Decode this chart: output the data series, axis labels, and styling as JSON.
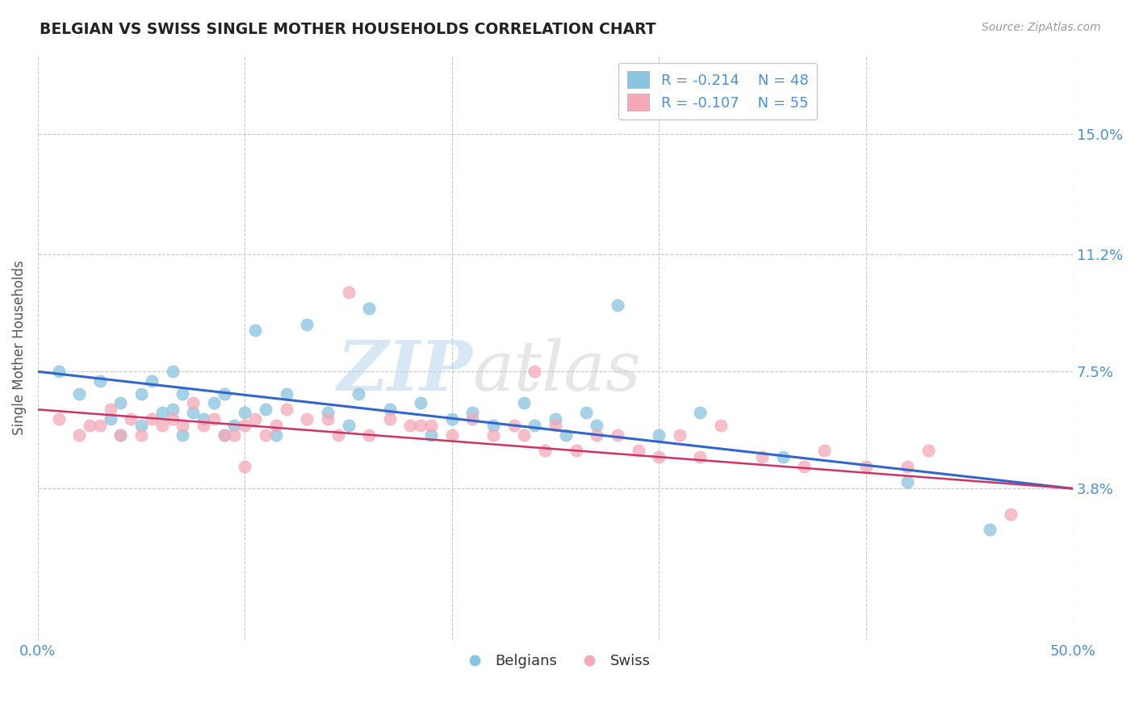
{
  "title": "BELGIAN VS SWISS SINGLE MOTHER HOUSEHOLDS CORRELATION CHART",
  "source": "Source: ZipAtlas.com",
  "ylabel": "Single Mother Households",
  "xlim": [
    0.0,
    0.5
  ],
  "ylim": [
    -0.01,
    0.175
  ],
  "yticks": [
    0.038,
    0.075,
    0.112,
    0.15
  ],
  "ytick_labels": [
    "3.8%",
    "7.5%",
    "11.2%",
    "15.0%"
  ],
  "xticks": [
    0.0,
    0.1,
    0.2,
    0.3,
    0.4,
    0.5
  ],
  "xtick_labels_shown": [
    "0.0%",
    "",
    "",
    "",
    "",
    "50.0%"
  ],
  "belgian_color": "#89c4e1",
  "swiss_color": "#f4a8b8",
  "line_belgian_color": "#3366cc",
  "line_swiss_color": "#cc3366",
  "legend_R_belgian": "R = -0.214",
  "legend_N_belgian": "N = 48",
  "legend_R_swiss": "R = -0.107",
  "legend_N_swiss": "N = 55",
  "legend_label_belgian": "Belgians",
  "legend_label_swiss": "Swiss",
  "background_color": "#ffffff",
  "grid_color": "#c8c8c8",
  "title_color": "#222222",
  "axis_label_color": "#555555",
  "tick_label_color": "#4a90d9",
  "watermark_zip": "ZIP",
  "watermark_atlas": "atlas",
  "belgian_line_start_y": 0.075,
  "belgian_line_end_y": 0.038,
  "swiss_line_start_y": 0.063,
  "swiss_line_end_y": 0.038,
  "belgian_x": [
    0.01,
    0.02,
    0.03,
    0.035,
    0.04,
    0.04,
    0.05,
    0.05,
    0.055,
    0.06,
    0.065,
    0.065,
    0.07,
    0.07,
    0.075,
    0.08,
    0.085,
    0.09,
    0.09,
    0.095,
    0.1,
    0.105,
    0.11,
    0.115,
    0.12,
    0.13,
    0.14,
    0.15,
    0.155,
    0.16,
    0.17,
    0.185,
    0.19,
    0.2,
    0.21,
    0.22,
    0.235,
    0.24,
    0.25,
    0.255,
    0.265,
    0.27,
    0.28,
    0.3,
    0.32,
    0.36,
    0.42,
    0.46
  ],
  "belgian_y": [
    0.075,
    0.068,
    0.072,
    0.06,
    0.065,
    0.055,
    0.068,
    0.058,
    0.072,
    0.062,
    0.075,
    0.063,
    0.068,
    0.055,
    0.062,
    0.06,
    0.065,
    0.055,
    0.068,
    0.058,
    0.062,
    0.088,
    0.063,
    0.055,
    0.068,
    0.09,
    0.062,
    0.058,
    0.068,
    0.095,
    0.063,
    0.065,
    0.055,
    0.06,
    0.062,
    0.058,
    0.065,
    0.058,
    0.06,
    0.055,
    0.062,
    0.058,
    0.096,
    0.055,
    0.062,
    0.048,
    0.04,
    0.025
  ],
  "swiss_x": [
    0.01,
    0.02,
    0.025,
    0.03,
    0.035,
    0.04,
    0.045,
    0.05,
    0.055,
    0.06,
    0.065,
    0.07,
    0.075,
    0.08,
    0.085,
    0.09,
    0.095,
    0.1,
    0.1,
    0.105,
    0.11,
    0.115,
    0.12,
    0.13,
    0.14,
    0.145,
    0.15,
    0.16,
    0.17,
    0.18,
    0.185,
    0.19,
    0.2,
    0.21,
    0.22,
    0.23,
    0.235,
    0.24,
    0.245,
    0.25,
    0.26,
    0.27,
    0.28,
    0.29,
    0.3,
    0.31,
    0.32,
    0.33,
    0.35,
    0.37,
    0.38,
    0.4,
    0.42,
    0.43,
    0.47
  ],
  "swiss_y": [
    0.06,
    0.055,
    0.058,
    0.058,
    0.063,
    0.055,
    0.06,
    0.055,
    0.06,
    0.058,
    0.06,
    0.058,
    0.065,
    0.058,
    0.06,
    0.055,
    0.055,
    0.058,
    0.045,
    0.06,
    0.055,
    0.058,
    0.063,
    0.06,
    0.06,
    0.055,
    0.1,
    0.055,
    0.06,
    0.058,
    0.058,
    0.058,
    0.055,
    0.06,
    0.055,
    0.058,
    0.055,
    0.075,
    0.05,
    0.058,
    0.05,
    0.055,
    0.055,
    0.05,
    0.048,
    0.055,
    0.048,
    0.058,
    0.048,
    0.045,
    0.05,
    0.045,
    0.045,
    0.05,
    0.03
  ]
}
